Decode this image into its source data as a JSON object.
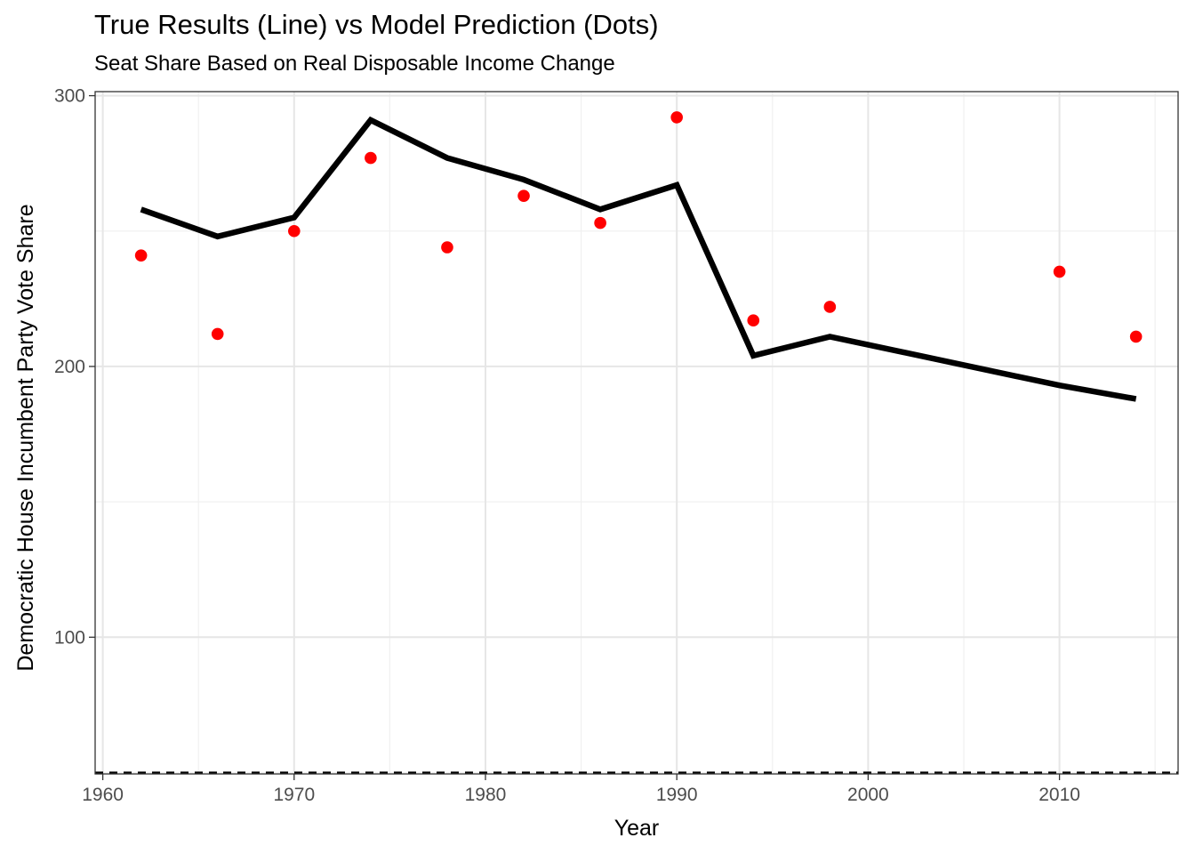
{
  "chart_data": {
    "type": "line",
    "title": "True Results (Line) vs Model Prediction (Dots)",
    "subtitle": "Seat Share Based on Real Disposable Income Change",
    "xlabel": "Year",
    "ylabel": "Democratic House Incumbent Party Vote Share",
    "xlim": [
      1959.6,
      2016.2
    ],
    "ylim": [
      49.5,
      301.5
    ],
    "x_ticks": [
      1960,
      1970,
      1980,
      1990,
      2000,
      2010
    ],
    "x_tick_labels": [
      "1960",
      "1970",
      "1980",
      "1990",
      "2000",
      "2010"
    ],
    "y_ticks": [
      100,
      200,
      300
    ],
    "y_tick_labels": [
      "100",
      "200",
      "300"
    ],
    "grid": true,
    "legend": "none",
    "series": [
      {
        "kind": "line",
        "color": "#000000",
        "x": [
          1962,
          1966,
          1970,
          1974,
          1978,
          1982,
          1986,
          1990,
          1994,
          1998,
          2010,
          2014
        ],
        "y": [
          258,
          248,
          255,
          291,
          277,
          269,
          258,
          267,
          204,
          211,
          193,
          188
        ]
      },
      {
        "kind": "scatter",
        "color": "#ff0000",
        "x": [
          1962,
          1966,
          1970,
          1974,
          1978,
          1982,
          1986,
          1990,
          1994,
          1998,
          2010,
          2014
        ],
        "y": [
          241,
          212,
          250,
          277,
          244,
          263,
          253,
          292,
          217,
          222,
          235,
          211
        ]
      }
    ],
    "reference_line": {
      "y": 50,
      "style": "dashed",
      "color": "#000000"
    }
  }
}
